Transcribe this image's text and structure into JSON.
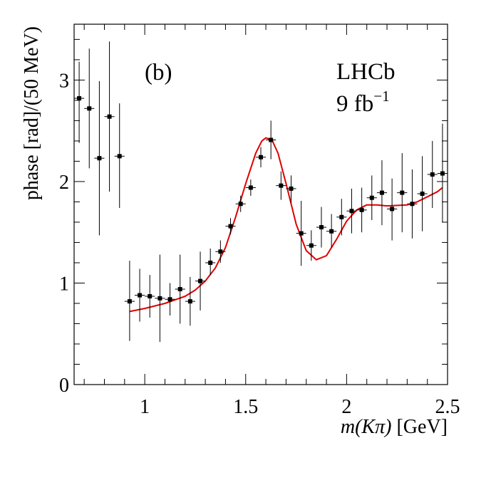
{
  "chart_data": {
    "type": "scatter",
    "panel_label": "(b)",
    "experiment": "LHCb",
    "luminosity": {
      "value": "9 fb",
      "exponent": "−1"
    },
    "xlabel": {
      "variable": "m(Kπ)",
      "unit": "[GeV]"
    },
    "ylabel": "phase [rad]/(50 MeV)",
    "xlim": [
      0.65,
      2.5
    ],
    "ylim": [
      0,
      3.55
    ],
    "xticks": [
      {
        "value": 1,
        "label": "1"
      },
      {
        "value": 1.5,
        "label": "1.5"
      },
      {
        "value": 2,
        "label": "2"
      },
      {
        "value": 2.5,
        "label": "2.5"
      }
    ],
    "yticks": [
      {
        "value": 0,
        "label": "0"
      },
      {
        "value": 1,
        "label": "1"
      },
      {
        "value": 2,
        "label": "2"
      },
      {
        "value": 3,
        "label": "3"
      }
    ],
    "series": [
      {
        "name": "data",
        "type": "errorbar",
        "color": "#000000",
        "points": [
          {
            "x": 0.675,
            "y": 2.82,
            "ylo": 2.38,
            "yhi": 3.18
          },
          {
            "x": 0.725,
            "y": 2.72,
            "ylo": 2.13,
            "yhi": 3.31
          },
          {
            "x": 0.775,
            "y": 2.23,
            "ylo": 1.47,
            "yhi": 2.99
          },
          {
            "x": 0.825,
            "y": 2.64,
            "ylo": 1.9,
            "yhi": 3.38
          },
          {
            "x": 0.875,
            "y": 2.25,
            "ylo": 1.74,
            "yhi": 2.77
          },
          {
            "x": 0.925,
            "y": 0.82,
            "ylo": 0.43,
            "yhi": 1.22
          },
          {
            "x": 0.975,
            "y": 0.88,
            "ylo": 0.62,
            "yhi": 1.14
          },
          {
            "x": 1.025,
            "y": 0.87,
            "ylo": 0.66,
            "yhi": 1.08
          },
          {
            "x": 1.075,
            "y": 0.85,
            "ylo": 0.42,
            "yhi": 1.28
          },
          {
            "x": 1.125,
            "y": 0.84,
            "ylo": 0.68,
            "yhi": 1.0
          },
          {
            "x": 1.175,
            "y": 0.94,
            "ylo": 0.6,
            "yhi": 1.28
          },
          {
            "x": 1.225,
            "y": 0.82,
            "ylo": 0.58,
            "yhi": 1.06
          },
          {
            "x": 1.275,
            "y": 1.02,
            "ylo": 0.73,
            "yhi": 1.31
          },
          {
            "x": 1.325,
            "y": 1.2,
            "ylo": 1.08,
            "yhi": 1.34
          },
          {
            "x": 1.375,
            "y": 1.31,
            "ylo": 1.2,
            "yhi": 1.42
          },
          {
            "x": 1.425,
            "y": 1.56,
            "ylo": 1.48,
            "yhi": 1.64
          },
          {
            "x": 1.475,
            "y": 1.78,
            "ylo": 1.7,
            "yhi": 1.86
          },
          {
            "x": 1.525,
            "y": 1.94,
            "ylo": 1.86,
            "yhi": 2.02
          },
          {
            "x": 1.575,
            "y": 2.24,
            "ylo": 2.14,
            "yhi": 2.34
          },
          {
            "x": 1.625,
            "y": 2.41,
            "ylo": 2.22,
            "yhi": 2.6
          },
          {
            "x": 1.675,
            "y": 1.96,
            "ylo": 1.82,
            "yhi": 2.1
          },
          {
            "x": 1.725,
            "y": 1.93,
            "ylo": 1.79,
            "yhi": 2.06
          },
          {
            "x": 1.775,
            "y": 1.49,
            "ylo": 1.17,
            "yhi": 1.81
          },
          {
            "x": 1.825,
            "y": 1.37,
            "ylo": 1.22,
            "yhi": 1.52
          },
          {
            "x": 1.875,
            "y": 1.55,
            "ylo": 1.35,
            "yhi": 1.75
          },
          {
            "x": 1.925,
            "y": 1.51,
            "ylo": 1.35,
            "yhi": 1.68
          },
          {
            "x": 1.975,
            "y": 1.65,
            "ylo": 1.47,
            "yhi": 1.83
          },
          {
            "x": 2.025,
            "y": 1.71,
            "ylo": 1.49,
            "yhi": 1.93
          },
          {
            "x": 2.075,
            "y": 1.72,
            "ylo": 1.5,
            "yhi": 1.94
          },
          {
            "x": 2.125,
            "y": 1.84,
            "ylo": 1.62,
            "yhi": 2.06
          },
          {
            "x": 2.175,
            "y": 1.89,
            "ylo": 1.57,
            "yhi": 2.21
          },
          {
            "x": 2.225,
            "y": 1.73,
            "ylo": 1.42,
            "yhi": 2.03
          },
          {
            "x": 2.275,
            "y": 1.89,
            "ylo": 1.5,
            "yhi": 2.28
          },
          {
            "x": 2.325,
            "y": 1.78,
            "ylo": 1.44,
            "yhi": 2.12
          },
          {
            "x": 2.375,
            "y": 1.88,
            "ylo": 1.51,
            "yhi": 2.25
          },
          {
            "x": 2.425,
            "y": 2.07,
            "ylo": 1.74,
            "yhi": 2.4
          },
          {
            "x": 2.475,
            "y": 2.08,
            "ylo": 1.6,
            "yhi": 2.57
          }
        ]
      },
      {
        "name": "fit",
        "type": "line",
        "color": "#e00000",
        "x": [
          0.925,
          1.0,
          1.1,
          1.2,
          1.25,
          1.3,
          1.35,
          1.4,
          1.45,
          1.5,
          1.55,
          1.58,
          1.6,
          1.63,
          1.66,
          1.7,
          1.75,
          1.8,
          1.85,
          1.9,
          1.95,
          2.0,
          2.05,
          2.1,
          2.15,
          2.2,
          2.3,
          2.35,
          2.4,
          2.45,
          2.475
        ],
        "y": [
          0.72,
          0.75,
          0.8,
          0.87,
          0.93,
          1.02,
          1.15,
          1.35,
          1.65,
          1.98,
          2.28,
          2.4,
          2.43,
          2.41,
          2.28,
          1.98,
          1.58,
          1.32,
          1.23,
          1.27,
          1.43,
          1.61,
          1.72,
          1.77,
          1.77,
          1.76,
          1.77,
          1.8,
          1.85,
          1.9,
          1.94
        ]
      }
    ]
  }
}
